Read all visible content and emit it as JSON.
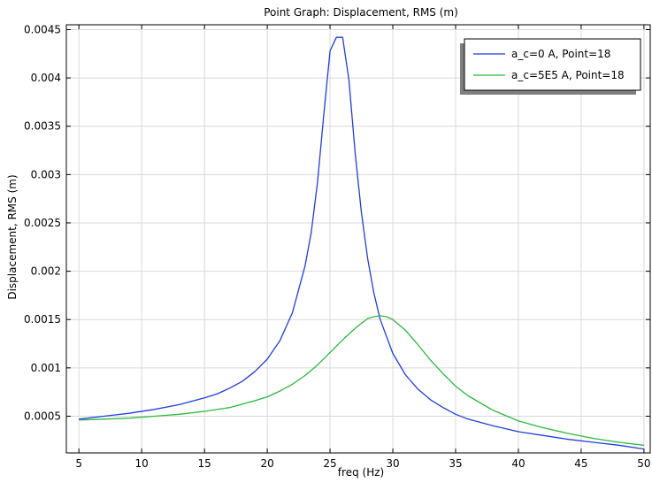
{
  "chart_data": {
    "type": "line",
    "title": "Point Graph: Displacement, RMS (m)",
    "xlabel": "freq (Hz)",
    "ylabel": "Displacement, RMS (m)",
    "xlim": [
      4,
      50.5
    ],
    "ylim": [
      0.00012,
      0.00455
    ],
    "x_ticks": [
      5,
      10,
      15,
      20,
      25,
      30,
      35,
      40,
      45,
      50
    ],
    "x_tick_labels": [
      "5",
      "10",
      "15",
      "20",
      "25",
      "30",
      "35",
      "40",
      "45",
      "50"
    ],
    "y_ticks": [
      0.0005,
      0.001,
      0.0015,
      0.002,
      0.0025,
      0.003,
      0.0035,
      0.004,
      0.0045
    ],
    "y_tick_labels": [
      "0.0005",
      "0.001",
      "0.0015",
      "0.002",
      "0.0025",
      "0.003",
      "0.0035",
      "0.004",
      "0.0045"
    ],
    "grid": true,
    "legend_position": "top-right",
    "series": [
      {
        "name": "a_c=0 A, Point=18",
        "color": "#1f3fdc",
        "x": [
          5,
          7,
          9,
          11,
          13,
          15,
          16,
          17,
          18,
          19,
          20,
          21,
          22,
          23,
          23.5,
          24,
          24.5,
          25,
          25.5,
          26,
          26.5,
          27,
          27.5,
          28,
          28.5,
          29,
          30,
          31,
          32,
          33,
          34,
          35,
          36,
          38,
          40,
          42,
          44,
          46,
          48,
          50
        ],
        "y": [
          0.00047,
          0.0005,
          0.00053,
          0.00057,
          0.00062,
          0.00069,
          0.00073,
          0.00079,
          0.00086,
          0.00096,
          0.00109,
          0.00128,
          0.00157,
          0.00205,
          0.0024,
          0.00292,
          0.00362,
          0.00428,
          0.00442,
          0.00442,
          0.00398,
          0.00322,
          0.00261,
          0.00213,
          0.00177,
          0.0015,
          0.00115,
          0.00093,
          0.00078,
          0.00067,
          0.00059,
          0.00052,
          0.00047,
          0.0004,
          0.00034,
          0.0003,
          0.00026,
          0.00023,
          0.0002,
          0.00016
        ]
      },
      {
        "name": "a_c=5E5 A, Point=18",
        "color": "#2db83d",
        "x": [
          5,
          7,
          9,
          11,
          13,
          15,
          17,
          19,
          20,
          21,
          22,
          23,
          24,
          25,
          26,
          27,
          28,
          28.5,
          29,
          29.5,
          30,
          31,
          32,
          33,
          34,
          35,
          36,
          38,
          40,
          42,
          44,
          46,
          48,
          50
        ],
        "y": [
          0.00046,
          0.00047,
          0.00048,
          0.0005,
          0.00052,
          0.00055,
          0.00059,
          0.00066,
          0.0007,
          0.00076,
          0.00083,
          0.00092,
          0.00103,
          0.00116,
          0.00129,
          0.00141,
          0.00151,
          0.00153,
          0.00154,
          0.00153,
          0.0015,
          0.00139,
          0.00124,
          0.00108,
          0.00094,
          0.00081,
          0.00071,
          0.00056,
          0.00045,
          0.00038,
          0.00032,
          0.00027,
          0.00023,
          0.0002
        ]
      }
    ]
  }
}
